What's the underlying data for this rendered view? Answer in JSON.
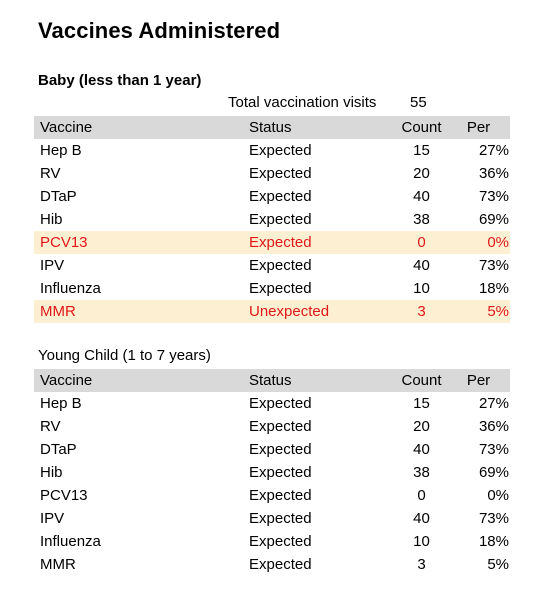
{
  "title": "Vaccines Administered",
  "baby": {
    "heading": "Baby (less than 1 year)",
    "visits_label": "Total vaccination visits",
    "visits_value": "55",
    "headers": {
      "vaccine": "Vaccine",
      "status": "Status",
      "count": "Count",
      "per": "Per"
    },
    "rows": [
      {
        "vaccine": "Hep B",
        "status": "Expected",
        "count": "15",
        "per": "27%",
        "highlight": false
      },
      {
        "vaccine": "RV",
        "status": "Expected",
        "count": "20",
        "per": "36%",
        "highlight": false
      },
      {
        "vaccine": "DTaP",
        "status": "Expected",
        "count": "40",
        "per": "73%",
        "highlight": false
      },
      {
        "vaccine": "Hib",
        "status": "Expected",
        "count": "38",
        "per": "69%",
        "highlight": false
      },
      {
        "vaccine": "PCV13",
        "status": "Expected",
        "count": "0",
        "per": "0%",
        "highlight": true
      },
      {
        "vaccine": "IPV",
        "status": "Expected",
        "count": "40",
        "per": "73%",
        "highlight": false
      },
      {
        "vaccine": "Influenza",
        "status": "Expected",
        "count": "10",
        "per": "18%",
        "highlight": false
      },
      {
        "vaccine": "MMR",
        "status": "Unexpected",
        "count": "3",
        "per": "5%",
        "highlight": true
      }
    ]
  },
  "child": {
    "heading": "Young Child (1 to 7 years)",
    "headers": {
      "vaccine": "Vaccine",
      "status": "Status",
      "count": "Count",
      "per": "Per"
    },
    "rows": [
      {
        "vaccine": "Hep B",
        "status": "Expected",
        "count": "15",
        "per": "27%",
        "highlight": false
      },
      {
        "vaccine": "RV",
        "status": "Expected",
        "count": "20",
        "per": "36%",
        "highlight": false
      },
      {
        "vaccine": "DTaP",
        "status": "Expected",
        "count": "40",
        "per": "73%",
        "highlight": false
      },
      {
        "vaccine": "Hib",
        "status": "Expected",
        "count": "38",
        "per": "69%",
        "highlight": false
      },
      {
        "vaccine": "PCV13",
        "status": "Expected",
        "count": "0",
        "per": "0%",
        "highlight": false
      },
      {
        "vaccine": "IPV",
        "status": "Expected",
        "count": "40",
        "per": "73%",
        "highlight": false
      },
      {
        "vaccine": "Influenza",
        "status": "Expected",
        "count": "10",
        "per": "18%",
        "highlight": false
      },
      {
        "vaccine": "MMR",
        "status": "Expected",
        "count": "3",
        "per": "5%",
        "highlight": false
      }
    ]
  },
  "colors": {
    "header_bg": "#d9d9d9",
    "highlight_bg": "#fdf0d2",
    "highlight_text": "#e01818"
  }
}
